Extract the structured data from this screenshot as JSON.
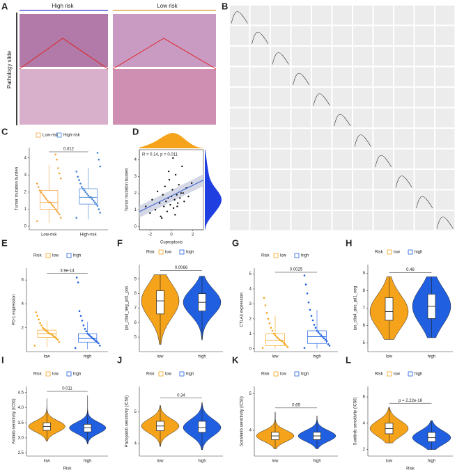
{
  "panel_a": {
    "label": "A",
    "columns": [
      "High risk",
      "Low risk"
    ],
    "row_label": "Pathology slide"
  },
  "panel_b": {
    "label": "B"
  },
  "chart_data": [
    {
      "type": "box",
      "label": "C",
      "ylabel": "Tumor mutation burden",
      "p_value": "0.012",
      "categories": [
        "Low-risk",
        "High-risk"
      ],
      "ylim": [
        -0.2,
        4.6
      ],
      "yticks": [
        0,
        1,
        2,
        3,
        4
      ],
      "series": [
        {
          "name": "Low-risk",
          "color": "#f2a33a",
          "box": [
            0.2,
            1.0,
            1.4,
            2.1,
            3.6
          ],
          "points": [
            0.3,
            0.5,
            0.7,
            0.8,
            0.9,
            1.0,
            1.1,
            1.2,
            1.3,
            1.4,
            1.4,
            1.5,
            1.6,
            1.7,
            1.8,
            1.9,
            2.0,
            2.1,
            2.3,
            2.5,
            2.8,
            3.1,
            3.4,
            3.9,
            4.2
          ]
        },
        {
          "name": "High-risk",
          "color": "#3a7fd5",
          "box": [
            0.4,
            1.3,
            1.7,
            2.2,
            3.4
          ],
          "points": [
            0.5,
            0.8,
            1.0,
            1.2,
            1.3,
            1.4,
            1.5,
            1.6,
            1.7,
            1.7,
            1.8,
            1.9,
            2.0,
            2.1,
            2.2,
            2.3,
            2.5,
            2.7,
            2.9,
            3.2,
            3.5,
            3.9,
            4.3
          ]
        }
      ]
    },
    {
      "type": "scatter",
      "label": "D",
      "annotation": "R = 0.14, p = 0.011",
      "xlabel": "Cuproptosis",
      "ylabel": "Tumor mutation burden",
      "xlim": [
        -3,
        3
      ],
      "ylim": [
        -0.2,
        4.6
      ],
      "xticks": [
        -2,
        0,
        2
      ],
      "yticks": [
        0,
        1,
        2,
        3,
        4
      ],
      "color": "#111111",
      "x": [
        -2.4,
        -2.0,
        -1.8,
        -1.5,
        -1.3,
        -1.1,
        -1.0,
        -0.8,
        -0.7,
        -0.6,
        -0.5,
        -0.4,
        -0.3,
        -0.2,
        -0.1,
        0.0,
        0.1,
        0.2,
        0.3,
        0.4,
        0.5,
        0.6,
        0.7,
        0.8,
        0.9,
        1.0,
        1.2,
        1.4,
        1.6,
        1.9,
        -0.9,
        0.15,
        0.35,
        -0.25,
        0.55,
        1.1
      ],
      "y": [
        1.2,
        0.8,
        1.6,
        1.0,
        2.1,
        1.4,
        0.6,
        1.9,
        1.2,
        2.4,
        1.5,
        0.9,
        1.7,
        2.8,
        1.3,
        1.8,
        2.2,
        1.1,
        1.6,
        3.1,
        1.9,
        1.4,
        2.5,
        1.7,
        2.0,
        3.6,
        1.5,
        2.3,
        1.8,
        2.6,
        0.5,
        4.1,
        0.7,
        3.3,
        1.2,
        2.0
      ]
    },
    {
      "type": "box",
      "label": "E",
      "ylabel": "PD-1 expression",
      "legend_title": "Risk",
      "p_value": "3.9e-14",
      "categories": [
        "low",
        "high"
      ],
      "ylim": [
        0,
        7
      ],
      "yticks": [
        2,
        4,
        6
      ],
      "series": [
        {
          "name": "low",
          "color": "#f5a31a",
          "box": [
            0.4,
            1.2,
            1.5,
            1.8,
            2.6
          ],
          "points": [
            0.5,
            0.8,
            1.0,
            1.1,
            1.2,
            1.3,
            1.4,
            1.5,
            1.5,
            1.6,
            1.7,
            1.8,
            1.9,
            2.0,
            2.2,
            2.4,
            2.7,
            3.0,
            3.3
          ]
        },
        {
          "name": "high",
          "color": "#1f5fe0",
          "box": [
            0.2,
            0.8,
            1.1,
            1.5,
            2.5
          ],
          "points": [
            0.3,
            0.5,
            0.7,
            0.8,
            0.9,
            1.0,
            1.1,
            1.2,
            1.3,
            1.4,
            1.5,
            1.7,
            1.9,
            2.2,
            2.6,
            3.0,
            3.4,
            5.8,
            6.2
          ]
        }
      ]
    },
    {
      "type": "violin",
      "label": "F",
      "ylabel": "ips_ctla4_neg_pd1_pos",
      "legend_title": "Risk",
      "p_value": "0.0066",
      "categories": [
        "low",
        "high"
      ],
      "ylim": [
        4,
        10
      ],
      "yticks": [
        5,
        6,
        7,
        8,
        9
      ],
      "series": [
        {
          "name": "low",
          "color": "#f5a31a",
          "box": [
            4.5,
            6.6,
            7.5,
            8.2,
            9.3
          ]
        },
        {
          "name": "high",
          "color": "#1f5fe0",
          "box": [
            4.8,
            6.8,
            7.4,
            8.0,
            9.2
          ]
        }
      ]
    },
    {
      "type": "box",
      "label": "G",
      "ylabel": "CTLA4 expression",
      "legend_title": "Risk",
      "p_value": "0.0025",
      "categories": [
        "low",
        "high"
      ],
      "ylim": [
        -0.2,
        5.4
      ],
      "yticks": [
        0,
        1,
        2,
        3,
        4,
        5
      ],
      "series": [
        {
          "name": "low",
          "color": "#f5a31a",
          "box": [
            0,
            0.2,
            0.55,
            1.0,
            2.2
          ],
          "points": [
            0.05,
            0.1,
            0.2,
            0.3,
            0.4,
            0.5,
            0.55,
            0.6,
            0.7,
            0.8,
            0.9,
            1.0,
            1.2,
            1.4,
            1.7,
            2.0,
            2.4,
            2.9,
            3.4
          ]
        },
        {
          "name": "high",
          "color": "#1f5fe0",
          "box": [
            0,
            0.35,
            0.8,
            1.2,
            2.6
          ],
          "points": [
            0.05,
            0.2,
            0.3,
            0.5,
            0.6,
            0.7,
            0.8,
            0.9,
            1.0,
            1.1,
            1.2,
            1.4,
            1.6,
            1.9,
            2.2,
            2.6,
            3.1,
            3.7,
            4.3,
            4.9
          ]
        }
      ]
    },
    {
      "type": "violin",
      "label": "H",
      "ylabel": "ips_ctla4_pos_pd1_neg",
      "legend_title": "Risk",
      "p_value": "0.48",
      "categories": [
        "low",
        "high"
      ],
      "ylim": [
        4.5,
        9.5
      ],
      "yticks": [
        5,
        6,
        7,
        8,
        9
      ],
      "series": [
        {
          "name": "low",
          "color": "#f5a31a",
          "box": [
            5.2,
            6.3,
            6.8,
            7.6,
            8.8
          ]
        },
        {
          "name": "high",
          "color": "#1f5fe0",
          "box": [
            5.3,
            6.4,
            7.1,
            7.8,
            8.8
          ]
        }
      ]
    },
    {
      "type": "violin",
      "label": "I",
      "ylabel": "Axitinib sensitivity (IC50)",
      "xlabel": "Risk",
      "legend_title": "Risk",
      "p_value": "0.011",
      "categories": [
        "low",
        "high"
      ],
      "ylim": [
        2.4,
        4.7
      ],
      "yticks": [
        {
          "value": 2.5,
          "label": "2.5"
        },
        {
          "value": 3,
          "label": "3.0"
        },
        {
          "value": 3.5,
          "label": "3.5"
        },
        {
          "value": 4,
          "label": "4.0"
        },
        {
          "value": 4.5,
          "label": "4.5"
        }
      ],
      "series": [
        {
          "name": "low",
          "color": "#f5a31a",
          "box": [
            2.9,
            3.25,
            3.38,
            3.5,
            4.3
          ]
        },
        {
          "name": "high",
          "color": "#1f5fe0",
          "box": [
            2.8,
            3.2,
            3.33,
            3.45,
            4.4
          ]
        }
      ]
    },
    {
      "type": "violin",
      "label": "J",
      "ylabel": "Pazopanib sensitivity (IC50)",
      "legend_title": "Risk",
      "p_value": "0.34",
      "categories": [
        "low",
        "high"
      ],
      "ylim": [
        3.6,
        5.8
      ],
      "yticks": [
        4,
        5
      ],
      "series": [
        {
          "name": "low",
          "color": "#f5a31a",
          "box": [
            3.9,
            4.4,
            4.55,
            4.7,
            5.2
          ]
        },
        {
          "name": "high",
          "color": "#1f5fe0",
          "box": [
            3.8,
            4.35,
            4.5,
            4.7,
            5.3
          ]
        }
      ]
    },
    {
      "type": "violin",
      "label": "K",
      "ylabel": "Sorafenib sensitivity (IC50)",
      "legend_title": "Risk",
      "p_value": "0.69",
      "categories": [
        "low",
        "high"
      ],
      "ylim": [
        3.3,
        5.2
      ],
      "yticks": [
        4,
        5
      ],
      "series": [
        {
          "name": "low",
          "color": "#f5a31a",
          "box": [
            3.5,
            3.75,
            3.85,
            3.95,
            4.5
          ]
        },
        {
          "name": "high",
          "color": "#1f5fe0",
          "box": [
            3.5,
            3.75,
            3.85,
            3.95,
            4.4
          ]
        }
      ]
    },
    {
      "type": "violin",
      "label": "L",
      "ylabel": "Sunitinib sensitivity (IC50)",
      "xlabel": "Risk",
      "legend_title": "Risk",
      "p_value": "p = 2.22e-16",
      "categories": [
        "low",
        "high"
      ],
      "ylim": [
        1.5,
        6.8
      ],
      "yticks": [
        2,
        4,
        6
      ],
      "series": [
        {
          "name": "low",
          "color": "#f5a31a",
          "box": [
            2.5,
            3.2,
            3.6,
            4.0,
            5.2
          ]
        },
        {
          "name": "high",
          "color": "#1f5fe0",
          "box": [
            2.0,
            2.6,
            2.9,
            3.3,
            4.2
          ]
        }
      ]
    }
  ]
}
